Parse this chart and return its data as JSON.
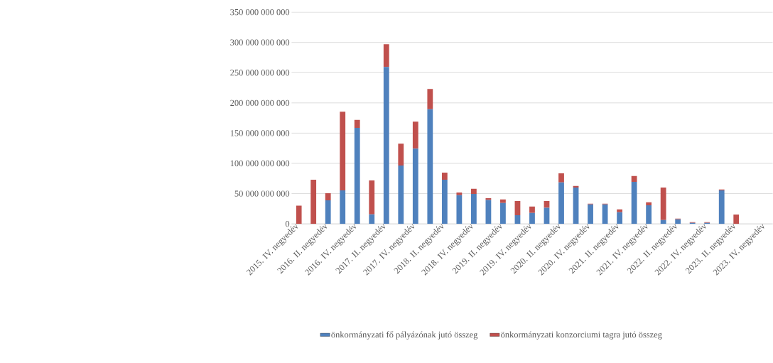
{
  "chart_data": {
    "type": "bar",
    "stacked": true,
    "categories": [
      "2015. IV. negyedév",
      null,
      "2016. II. negyedév",
      null,
      "2016. IV. negyedév",
      null,
      "2017. II. negyedév",
      null,
      "2017. IV. negyedév",
      null,
      "2018. II. negyedév",
      null,
      "2018. IV. negyedév",
      null,
      "2019. II. negyedév",
      null,
      "2019. IV. negyedév",
      null,
      "2020. II. negyedév",
      null,
      "2020. IV. negyedév",
      null,
      "2021. II. negyedév",
      null,
      "2021. IV. negyedév",
      null,
      "2022. II. negyedév",
      null,
      "2022. IV. negyedév",
      null,
      "2023. II. negyedév",
      null,
      "2023. IV. negyedév"
    ],
    "series": [
      {
        "name": "önkormányzati fő pályázónak jutó összeg",
        "color": "#4f81bd",
        "values": [
          0,
          0,
          39000000000,
          55500000000,
          158700000000,
          15600000000,
          259400000000,
          96400000000,
          124500000000,
          189500000000,
          73000000000,
          47300000000,
          49400000000,
          39400000000,
          34500000000,
          14300000000,
          18000000000,
          26500000000,
          68700000000,
          60000000000,
          32300000000,
          32300000000,
          19200000000,
          69600000000,
          30800000000,
          6400000000,
          7600000000,
          1500000000,
          1500000000,
          55500000000,
          0,
          null,
          null
        ]
      },
      {
        "name": "önkormányzati konzorciumi tagra jutó összeg",
        "color": "#c0504d",
        "values": [
          30000000000,
          73000000000,
          11700000000,
          130000000000,
          13100000000,
          56100000000,
          37600000000,
          36300000000,
          44500000000,
          33500000000,
          11800000000,
          4600000000,
          8600000000,
          3000000000,
          5800000000,
          23500000000,
          10700000000,
          11300000000,
          14900000000,
          2600000000,
          1000000000,
          1000000000,
          4600000000,
          9400000000,
          4900000000,
          53700000000,
          1200000000,
          1200000000,
          1200000000,
          1300000000,
          15300000000,
          null,
          null
        ]
      }
    ],
    "ylim": [
      0,
      350000000000
    ],
    "yticks": [
      {
        "value": 0,
        "label": "0"
      },
      {
        "value": 50000000000,
        "label": "50 000 000 000"
      },
      {
        "value": 100000000000,
        "label": "100 000 000 000"
      },
      {
        "value": 150000000000,
        "label": "150 000 000 000"
      },
      {
        "value": 200000000000,
        "label": "200 000 000 000"
      },
      {
        "value": 250000000000,
        "label": "250 000 000 000"
      },
      {
        "value": 300000000000,
        "label": "300 000 000 000"
      },
      {
        "value": 350000000000,
        "label": "350 000 000 000"
      }
    ],
    "grid": "y",
    "legend": "bottom"
  }
}
